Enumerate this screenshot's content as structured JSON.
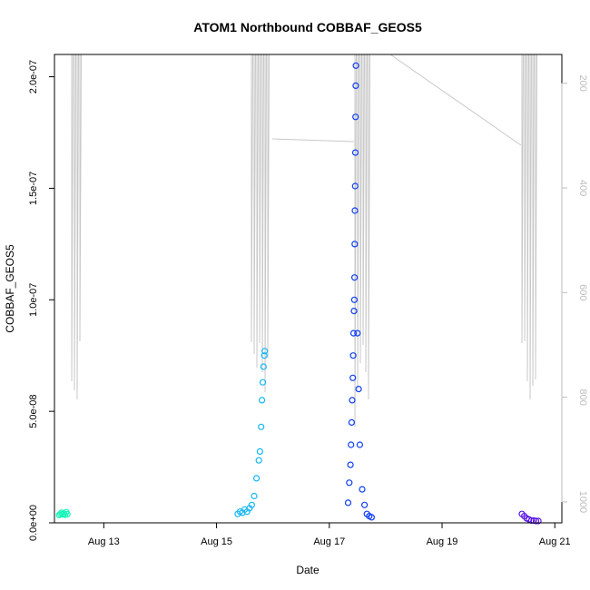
{
  "chart_data": {
    "type": "scatter",
    "title": "ATOM1 Northbound COBBAF_GEOS5",
    "xlabel": "Date",
    "ylabel": "COBBAF_GEOS5",
    "x_ticks": [
      "Aug 13",
      "Aug 15",
      "Aug 17",
      "Aug 19",
      "Aug 21"
    ],
    "x_range": [
      "Aug 12 03:00",
      "Aug 21 03:00"
    ],
    "y_ticks": [
      "0.0e+00",
      "5.0e-08",
      "1.0e-07",
      "1.5e-07",
      "2.0e-07"
    ],
    "ylim": [
      0,
      2.1e-07
    ],
    "secondary_axis": {
      "side": "right",
      "color": "#bdbdbd",
      "reversed": true,
      "ticks": [
        "200",
        "400",
        "600",
        "800",
        "1000"
      ],
      "range": [
        1040,
        145
      ]
    },
    "grid": false,
    "series": [
      {
        "color": "#19f5b9",
        "points": [
          [
            "Aug 12 05:00",
            3.5e-09
          ],
          [
            "Aug 12 05:30",
            4e-09
          ],
          [
            "Aug 12 06:00",
            4.5e-09
          ],
          [
            "Aug 12 06:30",
            3.8e-09
          ],
          [
            "Aug 12 07:00",
            4.2e-09
          ],
          [
            "Aug 12 07:30",
            3.6e-09
          ],
          [
            "Aug 12 08:00",
            4.8e-09
          ],
          [
            "Aug 12 08:30",
            3.9e-09
          ]
        ]
      },
      {
        "color": "#15b7f5",
        "points": [
          [
            "Aug 15 09:00",
            4e-09
          ],
          [
            "Aug 15 10:00",
            5e-09
          ],
          [
            "Aug 15 11:00",
            4.5e-09
          ],
          [
            "Aug 15 12:00",
            6e-09
          ],
          [
            "Aug 15 13:00",
            5e-09
          ],
          [
            "Aug 15 14:00",
            6.5e-09
          ],
          [
            "Aug 15 15:00",
            8e-09
          ],
          [
            "Aug 15 16:00",
            1.2e-08
          ],
          [
            "Aug 15 17:00",
            2e-08
          ],
          [
            "Aug 15 18:00",
            2.8e-08
          ],
          [
            "Aug 15 18:30",
            3.2e-08
          ],
          [
            "Aug 15 19:00",
            4.3e-08
          ],
          [
            "Aug 15 19:20",
            5.5e-08
          ],
          [
            "Aug 15 19:40",
            6.3e-08
          ],
          [
            "Aug 15 20:00",
            7e-08
          ],
          [
            "Aug 15 20:20",
            7.5e-08
          ],
          [
            "Aug 15 20:30",
            7.7e-08
          ]
        ]
      },
      {
        "color": "#0f3ef5",
        "points": [
          [
            "Aug 17 08:00",
            9e-09
          ],
          [
            "Aug 17 08:30",
            1.8e-08
          ],
          [
            "Aug 17 09:00",
            2.6e-08
          ],
          [
            "Aug 17 09:15",
            3.5e-08
          ],
          [
            "Aug 17 09:30",
            4.5e-08
          ],
          [
            "Aug 17 09:45",
            5.5e-08
          ],
          [
            "Aug 17 10:00",
            6.5e-08
          ],
          [
            "Aug 17 10:10",
            7.5e-08
          ],
          [
            "Aug 17 10:20",
            8.5e-08
          ],
          [
            "Aug 17 10:30",
            9.5e-08
          ],
          [
            "Aug 17 10:40",
            1e-07
          ],
          [
            "Aug 17 10:45",
            1.1e-07
          ],
          [
            "Aug 17 10:50",
            1.25e-07
          ],
          [
            "Aug 17 10:55",
            1.4e-07
          ],
          [
            "Aug 17 11:00",
            1.51e-07
          ],
          [
            "Aug 17 11:05",
            1.66e-07
          ],
          [
            "Aug 17 11:10",
            1.82e-07
          ],
          [
            "Aug 17 11:15",
            1.96e-07
          ],
          [
            "Aug 17 11:20",
            2.05e-07
          ],
          [
            "Aug 17 12:00",
            8.5e-08
          ],
          [
            "Aug 17 12:30",
            6e-08
          ],
          [
            "Aug 17 13:00",
            3.5e-08
          ],
          [
            "Aug 17 14:00",
            1.5e-08
          ],
          [
            "Aug 17 15:00",
            8e-09
          ],
          [
            "Aug 17 16:00",
            4e-09
          ],
          [
            "Aug 17 17:00",
            3e-09
          ],
          [
            "Aug 17 18:00",
            2.5e-09
          ]
        ]
      },
      {
        "color": "#5a14e8",
        "points": [
          [
            "Aug 20 10:00",
            4e-09
          ],
          [
            "Aug 20 11:00",
            3e-09
          ],
          [
            "Aug 20 12:00",
            2e-09
          ],
          [
            "Aug 20 13:00",
            1.5e-09
          ],
          [
            "Aug 20 14:00",
            1e-09
          ],
          [
            "Aug 20 15:00",
            1e-09
          ],
          [
            "Aug 20 16:00",
            8e-10
          ],
          [
            "Aug 20 17:00",
            8e-10
          ]
        ]
      }
    ]
  }
}
